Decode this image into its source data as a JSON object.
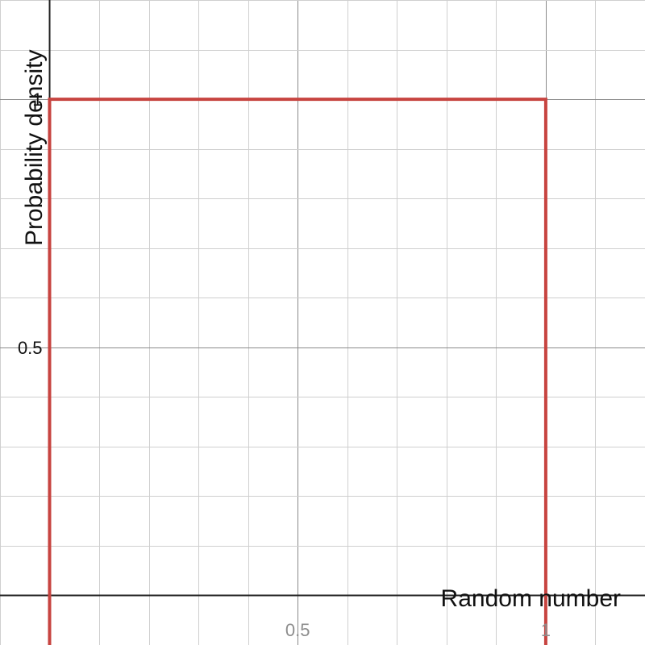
{
  "chart_data": {
    "type": "line",
    "xlabel": "Random number",
    "ylabel": "Probability density",
    "xlim": [
      -0.1,
      1.2
    ],
    "ylim": [
      -0.1,
      1.2
    ],
    "grid": true,
    "x_ticks": [
      {
        "value": 0.5,
        "label": "0.5"
      },
      {
        "value": 1,
        "label": "1"
      }
    ],
    "y_ticks": [
      {
        "value": 0.5,
        "label": "0.5"
      },
      {
        "value": 1,
        "label": "1"
      }
    ],
    "series": [
      {
        "x": [
          0,
          0,
          1,
          1
        ],
        "y": [
          -0.1,
          1,
          1,
          -0.1
        ],
        "color": "#c74440"
      }
    ]
  }
}
